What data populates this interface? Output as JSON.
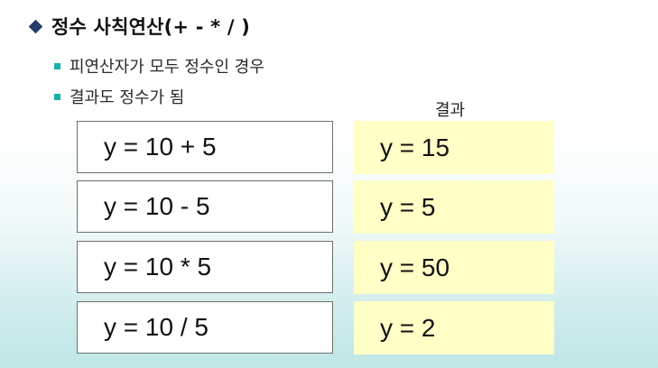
{
  "heading": {
    "title": "정수 사칙연산(+ - * / )"
  },
  "bullets": [
    "피연산자가 모두 정수인 경우",
    "결과도 정수가 됨"
  ],
  "result_label": "결과",
  "rows": [
    {
      "expression": "y = 10 + 5",
      "result": "y = 15"
    },
    {
      "expression": "y = 10 - 5",
      "result": "y = 5"
    },
    {
      "expression": "y = 10 * 5",
      "result": "y = 50"
    },
    {
      "expression": "y = 10 / 5",
      "result": "y = 2"
    }
  ],
  "colors": {
    "diamond": "#233b6a",
    "bullet_square": "#1ab0a6",
    "result_fill": "#ffffc6",
    "box_border": "#6f6f6f"
  }
}
